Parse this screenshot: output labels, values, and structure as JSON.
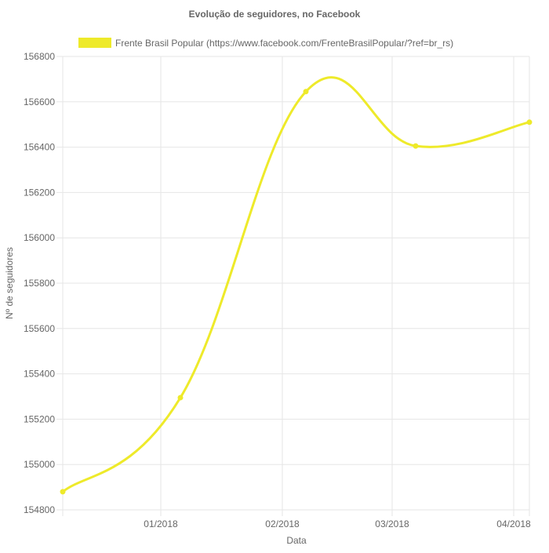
{
  "chart_data": {
    "type": "line",
    "title": "Evolução de seguidores, no Facebook",
    "xlabel": "Data",
    "ylabel": "Nº de seguidores",
    "ylim": [
      154800,
      156800
    ],
    "y_ticks": [
      156800,
      156600,
      156400,
      156200,
      156000,
      155800,
      155600,
      155400,
      155200,
      155000,
      154800
    ],
    "x_ticks": [
      {
        "label": "01/2018",
        "date": "2018-01-01"
      },
      {
        "label": "02/2018",
        "date": "2018-02-01"
      },
      {
        "label": "03/2018",
        "date": "2018-03-01"
      },
      {
        "label": "04/2018",
        "date": "2018-04-01"
      }
    ],
    "xlim": [
      "2017-12-07",
      "2018-04-05"
    ],
    "grid": true,
    "legend_position": "top",
    "series": [
      {
        "name": "Frente Brasil Popular (https://www.facebook.com/FrenteBrasilPopular/?ref=br_rs)",
        "color": "#eeea2a",
        "points": [
          {
            "x": "2017-12-07",
            "y": 154880
          },
          {
            "x": "2018-01-06",
            "y": 155295
          },
          {
            "x": "2018-02-07",
            "y": 156645
          },
          {
            "x": "2018-03-07",
            "y": 156405
          },
          {
            "x": "2018-04-05",
            "y": 156510
          }
        ]
      }
    ]
  }
}
